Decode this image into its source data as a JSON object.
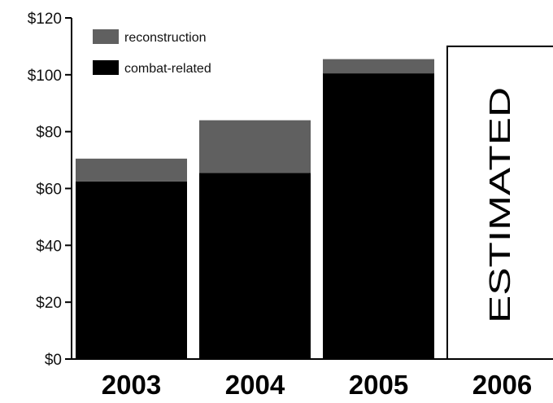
{
  "chart_data": {
    "type": "bar",
    "stacked": true,
    "categories": [
      "2003",
      "2004",
      "2005",
      "2006"
    ],
    "series": [
      {
        "name": "combat-related",
        "values": [
          62.5,
          65.5,
          100.5,
          null
        ],
        "color": "#000000"
      },
      {
        "name": "reconstruction",
        "values": [
          8,
          18.5,
          5,
          null
        ],
        "color": "#606060"
      }
    ],
    "estimated": {
      "category": "2006",
      "label": "ESTIMATED",
      "total": 110
    },
    "yticks": [
      0,
      20,
      40,
      60,
      80,
      100,
      120
    ],
    "ytick_labels": [
      "$0",
      "$20",
      "$40",
      "$60",
      "$80",
      "$100",
      "$120"
    ],
    "ylim": [
      0,
      120
    ],
    "legend": {
      "placement": "top-left",
      "entries": [
        "reconstruction",
        "combat-related"
      ]
    },
    "grid": false
  }
}
